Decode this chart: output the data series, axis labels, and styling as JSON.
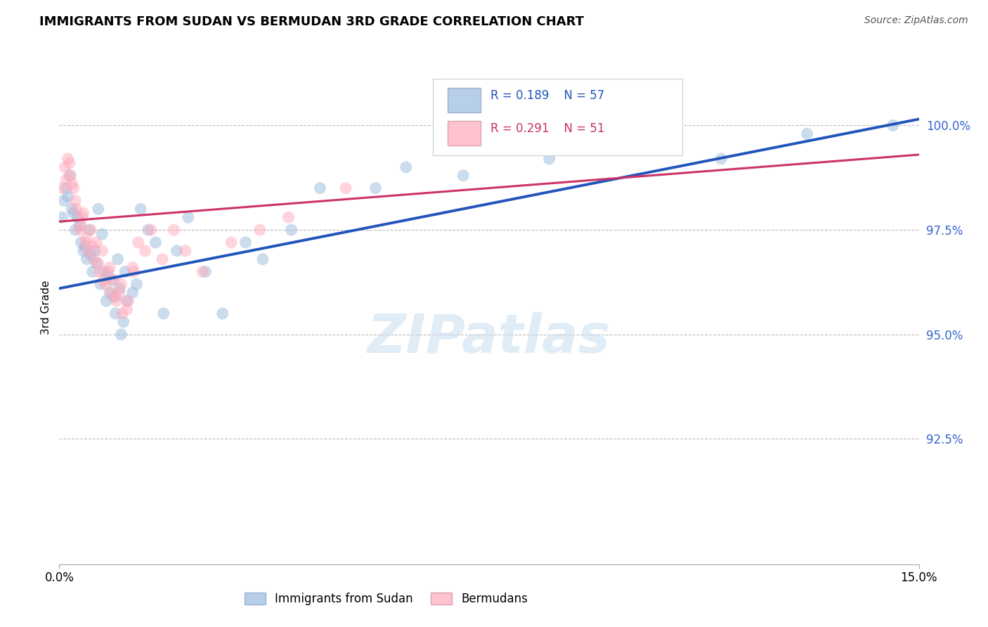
{
  "title": "IMMIGRANTS FROM SUDAN VS BERMUDAN 3RD GRADE CORRELATION CHART",
  "source": "Source: ZipAtlas.com",
  "ylabel": "3rd Grade",
  "xlim": [
    0.0,
    15.0
  ],
  "ylim": [
    89.5,
    101.8
  ],
  "yticks": [
    92.5,
    95.0,
    97.5,
    100.0
  ],
  "ytick_labels": [
    "92.5%",
    "95.0%",
    "97.5%",
    "100.0%"
  ],
  "xtick_labels": [
    "0.0%",
    "15.0%"
  ],
  "blue_color": "#99bbdd",
  "pink_color": "#ffaabb",
  "blue_line_color": "#2255bb",
  "pink_line_color": "#cc3366",
  "legend_R_blue": "R = 0.189",
  "legend_N_blue": "N = 57",
  "legend_R_pink": "R = 0.291",
  "legend_N_pink": "N = 51",
  "legend_label_blue": "Immigrants from Sudan",
  "legend_label_pink": "Bermudans",
  "watermark": "ZIPatlas",
  "blue_x": [
    0.08,
    0.12,
    0.18,
    0.22,
    0.28,
    0.32,
    0.38,
    0.42,
    0.48,
    0.52,
    0.58,
    0.62,
    0.68,
    0.72,
    0.78,
    0.82,
    0.88,
    0.92,
    0.98,
    1.02,
    1.08,
    1.12,
    1.18,
    1.28,
    1.42,
    1.55,
    1.68,
    1.82,
    2.05,
    2.25,
    2.55,
    2.85,
    3.25,
    3.55,
    4.05,
    4.55,
    5.52,
    6.05,
    7.05,
    8.55,
    10.05,
    11.55,
    13.05,
    14.55,
    0.05,
    0.15,
    0.25,
    0.35,
    0.45,
    0.55,
    0.65,
    0.75,
    0.85,
    0.95,
    1.05,
    1.15,
    1.35
  ],
  "blue_y": [
    98.2,
    98.5,
    98.8,
    98.0,
    97.5,
    97.8,
    97.2,
    97.0,
    96.8,
    97.5,
    96.5,
    97.0,
    98.0,
    96.2,
    96.5,
    95.8,
    96.0,
    96.3,
    95.5,
    96.8,
    95.0,
    95.3,
    95.8,
    96.0,
    98.0,
    97.5,
    97.2,
    95.5,
    97.0,
    97.8,
    96.5,
    95.5,
    97.2,
    96.8,
    97.5,
    98.5,
    98.5,
    99.0,
    98.8,
    99.2,
    99.5,
    99.2,
    99.8,
    100.0,
    97.8,
    98.3,
    97.9,
    97.6,
    97.1,
    96.9,
    96.7,
    97.4,
    96.4,
    95.9,
    96.1,
    96.5,
    96.2
  ],
  "pink_x": [
    0.05,
    0.1,
    0.15,
    0.2,
    0.25,
    0.3,
    0.35,
    0.4,
    0.45,
    0.5,
    0.55,
    0.6,
    0.65,
    0.7,
    0.75,
    0.8,
    0.85,
    0.9,
    0.95,
    1.0,
    1.05,
    1.1,
    1.2,
    1.3,
    1.5,
    1.6,
    1.8,
    2.0,
    2.2,
    2.5,
    3.0,
    3.5,
    4.0,
    5.0,
    0.12,
    0.18,
    0.22,
    0.28,
    0.38,
    0.42,
    0.48,
    0.58,
    0.68,
    0.78,
    0.88,
    0.98,
    1.08,
    1.18,
    1.28,
    1.38,
    10.55
  ],
  "pink_y": [
    98.5,
    99.0,
    99.2,
    98.8,
    98.5,
    98.0,
    97.5,
    97.8,
    97.2,
    97.0,
    97.5,
    96.8,
    97.2,
    96.5,
    97.0,
    96.2,
    96.5,
    96.0,
    96.3,
    95.8,
    96.0,
    95.5,
    95.8,
    96.5,
    97.0,
    97.5,
    96.8,
    97.5,
    97.0,
    96.5,
    97.2,
    97.5,
    97.8,
    98.5,
    98.7,
    99.1,
    98.6,
    98.2,
    97.6,
    97.9,
    97.3,
    97.1,
    96.7,
    96.3,
    96.6,
    95.9,
    96.2,
    95.6,
    96.6,
    97.2,
    99.5
  ],
  "blue_trend_x": [
    0.0,
    15.0
  ],
  "blue_trend_y": [
    96.1,
    100.15
  ],
  "pink_trend_x": [
    0.0,
    15.0
  ],
  "pink_trend_y": [
    97.7,
    99.3
  ]
}
